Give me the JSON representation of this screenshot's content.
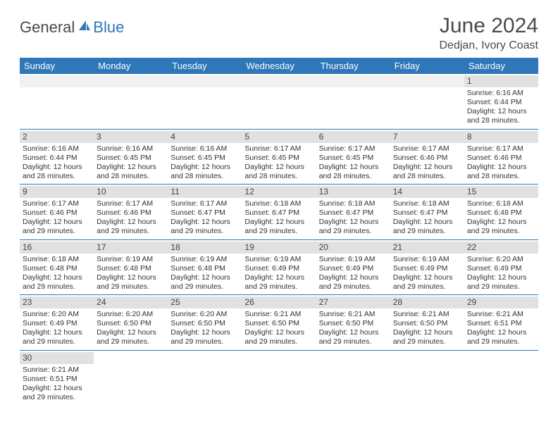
{
  "brand": {
    "part1": "General",
    "part2": "Blue"
  },
  "title": "June 2024",
  "location": "Dedjan, Ivory Coast",
  "colors": {
    "header_bg": "#2e77b8",
    "header_fg": "#ffffff",
    "daynum_bg": "#e1e1e1",
    "row_divider": "#2e77b8",
    "text": "#333333",
    "brand_gray": "#4a4a4a",
    "brand_blue": "#2e77b8"
  },
  "typography": {
    "title_fontsize": 30,
    "location_fontsize": 16,
    "header_fontsize": 13,
    "cell_fontsize": 10.5,
    "daynum_fontsize": 12
  },
  "weekdays": [
    "Sunday",
    "Monday",
    "Tuesday",
    "Wednesday",
    "Thursday",
    "Friday",
    "Saturday"
  ],
  "layout": {
    "first_weekday_index": 6,
    "days_in_month": 30
  },
  "labels": {
    "sunrise": "Sunrise:",
    "sunset": "Sunset:",
    "daylight": "Daylight:"
  },
  "days": [
    {
      "n": 1,
      "sunrise": "6:16 AM",
      "sunset": "6:44 PM",
      "daylight": "12 hours and 28 minutes."
    },
    {
      "n": 2,
      "sunrise": "6:16 AM",
      "sunset": "6:44 PM",
      "daylight": "12 hours and 28 minutes."
    },
    {
      "n": 3,
      "sunrise": "6:16 AM",
      "sunset": "6:45 PM",
      "daylight": "12 hours and 28 minutes."
    },
    {
      "n": 4,
      "sunrise": "6:16 AM",
      "sunset": "6:45 PM",
      "daylight": "12 hours and 28 minutes."
    },
    {
      "n": 5,
      "sunrise": "6:17 AM",
      "sunset": "6:45 PM",
      "daylight": "12 hours and 28 minutes."
    },
    {
      "n": 6,
      "sunrise": "6:17 AM",
      "sunset": "6:45 PM",
      "daylight": "12 hours and 28 minutes."
    },
    {
      "n": 7,
      "sunrise": "6:17 AM",
      "sunset": "6:46 PM",
      "daylight": "12 hours and 28 minutes."
    },
    {
      "n": 8,
      "sunrise": "6:17 AM",
      "sunset": "6:46 PM",
      "daylight": "12 hours and 28 minutes."
    },
    {
      "n": 9,
      "sunrise": "6:17 AM",
      "sunset": "6:46 PM",
      "daylight": "12 hours and 29 minutes."
    },
    {
      "n": 10,
      "sunrise": "6:17 AM",
      "sunset": "6:46 PM",
      "daylight": "12 hours and 29 minutes."
    },
    {
      "n": 11,
      "sunrise": "6:17 AM",
      "sunset": "6:47 PM",
      "daylight": "12 hours and 29 minutes."
    },
    {
      "n": 12,
      "sunrise": "6:18 AM",
      "sunset": "6:47 PM",
      "daylight": "12 hours and 29 minutes."
    },
    {
      "n": 13,
      "sunrise": "6:18 AM",
      "sunset": "6:47 PM",
      "daylight": "12 hours and 29 minutes."
    },
    {
      "n": 14,
      "sunrise": "6:18 AM",
      "sunset": "6:47 PM",
      "daylight": "12 hours and 29 minutes."
    },
    {
      "n": 15,
      "sunrise": "6:18 AM",
      "sunset": "6:48 PM",
      "daylight": "12 hours and 29 minutes."
    },
    {
      "n": 16,
      "sunrise": "6:18 AM",
      "sunset": "6:48 PM",
      "daylight": "12 hours and 29 minutes."
    },
    {
      "n": 17,
      "sunrise": "6:19 AM",
      "sunset": "6:48 PM",
      "daylight": "12 hours and 29 minutes."
    },
    {
      "n": 18,
      "sunrise": "6:19 AM",
      "sunset": "6:48 PM",
      "daylight": "12 hours and 29 minutes."
    },
    {
      "n": 19,
      "sunrise": "6:19 AM",
      "sunset": "6:49 PM",
      "daylight": "12 hours and 29 minutes."
    },
    {
      "n": 20,
      "sunrise": "6:19 AM",
      "sunset": "6:49 PM",
      "daylight": "12 hours and 29 minutes."
    },
    {
      "n": 21,
      "sunrise": "6:19 AM",
      "sunset": "6:49 PM",
      "daylight": "12 hours and 29 minutes."
    },
    {
      "n": 22,
      "sunrise": "6:20 AM",
      "sunset": "6:49 PM",
      "daylight": "12 hours and 29 minutes."
    },
    {
      "n": 23,
      "sunrise": "6:20 AM",
      "sunset": "6:49 PM",
      "daylight": "12 hours and 29 minutes."
    },
    {
      "n": 24,
      "sunrise": "6:20 AM",
      "sunset": "6:50 PM",
      "daylight": "12 hours and 29 minutes."
    },
    {
      "n": 25,
      "sunrise": "6:20 AM",
      "sunset": "6:50 PM",
      "daylight": "12 hours and 29 minutes."
    },
    {
      "n": 26,
      "sunrise": "6:21 AM",
      "sunset": "6:50 PM",
      "daylight": "12 hours and 29 minutes."
    },
    {
      "n": 27,
      "sunrise": "6:21 AM",
      "sunset": "6:50 PM",
      "daylight": "12 hours and 29 minutes."
    },
    {
      "n": 28,
      "sunrise": "6:21 AM",
      "sunset": "6:50 PM",
      "daylight": "12 hours and 29 minutes."
    },
    {
      "n": 29,
      "sunrise": "6:21 AM",
      "sunset": "6:51 PM",
      "daylight": "12 hours and 29 minutes."
    },
    {
      "n": 30,
      "sunrise": "6:21 AM",
      "sunset": "6:51 PM",
      "daylight": "12 hours and 29 minutes."
    }
  ]
}
